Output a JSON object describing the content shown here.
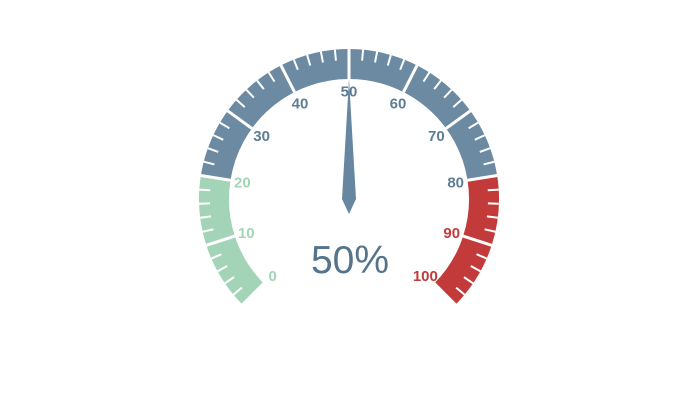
{
  "chart_data": {
    "type": "gauge",
    "title": "",
    "min": 0,
    "max": 100,
    "value": 50,
    "value_label": "50%",
    "start_angle_deg": 225,
    "end_angle_deg": -45,
    "major_tick_step": 10,
    "minor_tick_step": 2,
    "tick_label_values": [
      0,
      10,
      20,
      30,
      40,
      50,
      60,
      70,
      80,
      90,
      100
    ],
    "segments": [
      {
        "name": "green-zone",
        "from": 0,
        "to": 20,
        "color": "#a3d4b7"
      },
      {
        "name": "blue-zone",
        "from": 20,
        "to": 80,
        "color": "#6c8aa2"
      },
      {
        "name": "red-zone",
        "from": 80,
        "to": 100,
        "color": "#c23a3a"
      }
    ],
    "tick_label_colors": {
      "low_zone": "#a3d4b7",
      "mid_zone": "#5d7e95",
      "high_zone": "#c23a3a"
    },
    "tick_color": "#ffffff",
    "needle_color": "#67869f",
    "value_text_color": "#53748b",
    "background_color": "#ffffff"
  }
}
